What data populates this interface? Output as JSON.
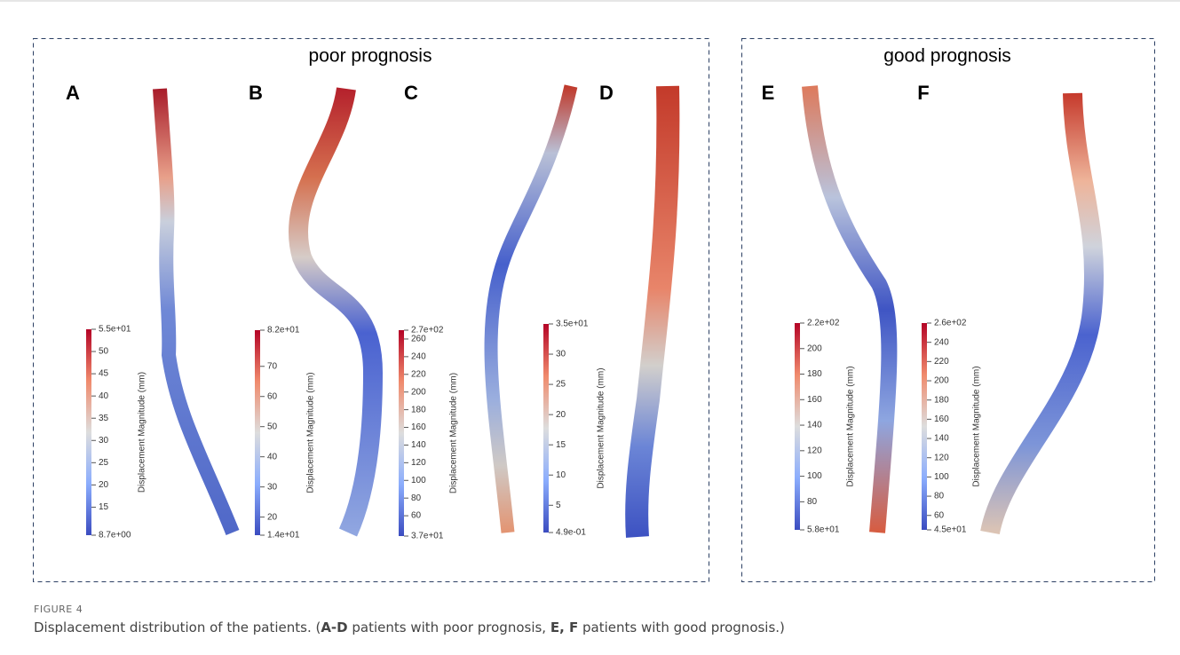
{
  "groups": [
    {
      "title": "poor prognosis"
    },
    {
      "title": "good prognosis"
    }
  ],
  "panels": [
    {
      "letter": "A",
      "colorbar": {
        "label": "Displacement Magnitude (mm)",
        "max": "5.5e+01",
        "min": "8.7e+00",
        "ticks": [
          "50",
          "45",
          "40",
          "35",
          "30",
          "25",
          "20",
          "15"
        ]
      }
    },
    {
      "letter": "B",
      "colorbar": {
        "label": "Displacement Magnitude (mm)",
        "max": "8.2e+01",
        "min": "1.4e+01",
        "ticks": [
          "70",
          "60",
          "50",
          "40",
          "30",
          "20"
        ]
      }
    },
    {
      "letter": "C",
      "colorbar": {
        "label": "Displacement Magnitude (mm)",
        "max": "2.7e+02",
        "min": "3.7e+01",
        "ticks": [
          "260",
          "240",
          "220",
          "200",
          "180",
          "160",
          "140",
          "120",
          "100",
          "80",
          "60"
        ]
      }
    },
    {
      "letter": "D",
      "colorbar": {
        "label": "Displacement Magnitude (mm)",
        "max": "3.5e+01",
        "min": "4.9e-01",
        "ticks": [
          "30",
          "25",
          "20",
          "15",
          "10",
          "5"
        ]
      }
    },
    {
      "letter": "E",
      "colorbar": {
        "label": "Displacement Magnitude (mm)",
        "max": "2.2e+02",
        "min": "5.8e+01",
        "ticks": [
          "200",
          "180",
          "160",
          "140",
          "120",
          "100",
          "80"
        ]
      }
    },
    {
      "letter": "F",
      "colorbar": {
        "label": "Displacement Magnitude (mm)",
        "max": "2.6e+02",
        "min": "4.5e+01",
        "ticks": [
          "240",
          "220",
          "200",
          "180",
          "160",
          "140",
          "120",
          "100",
          "80",
          "60"
        ]
      }
    }
  ],
  "caption": {
    "label": "FIGURE 4",
    "parts": [
      "Displacement distribution of the patients. (",
      "A-D",
      " patients with poor prognosis, ",
      "E, F",
      " patients with good prognosis.)"
    ]
  }
}
